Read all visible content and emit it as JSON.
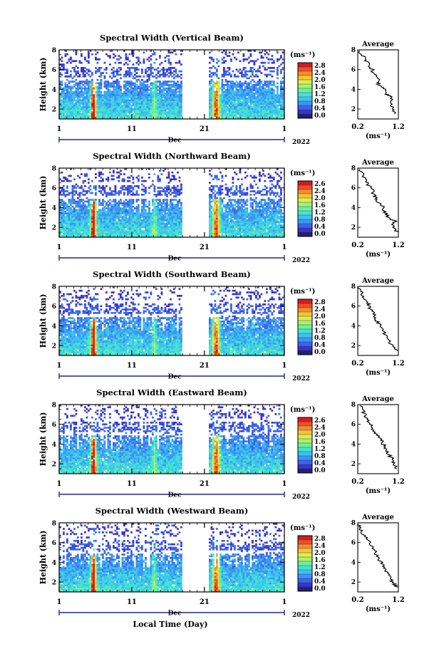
{
  "chart_data": {
    "type": "heatmap",
    "x_axis": {
      "tick_labels": [
        "1",
        "11",
        "21",
        "1"
      ],
      "month_label": "Dec",
      "year_label": "2022",
      "label": "Local Time (Day)"
    },
    "y_axis": {
      "label": "Height (km)",
      "ylim": [
        1,
        8
      ],
      "tick_labels": [
        "2",
        "4",
        "6",
        "8"
      ]
    },
    "colorbar": {
      "unit": "(ms⁻¹)",
      "colors": [
        "#222266",
        "#3a34c8",
        "#3f63e8",
        "#3d95f0",
        "#3cc3ef",
        "#46e3cf",
        "#6cf29a",
        "#a8f26a",
        "#e0ee45",
        "#f8c431",
        "#f58c28",
        "#ee4f22",
        "#d61b1b"
      ],
      "grid_color": "#1d2a8c"
    },
    "average_panel": {
      "title": "Average",
      "xlim": [
        0.2,
        1.2
      ],
      "x_tick_labels": [
        "0.2",
        "1.2"
      ],
      "x_unit": "(ms⁻¹)",
      "ylim": [
        1,
        8
      ],
      "y_tick_labels": [
        "2",
        "4",
        "6",
        "8"
      ]
    },
    "panels": [
      {
        "title": "Spectral Width (Vertical Beam)",
        "colorbar_labels": [
          "2.8",
          "2.4",
          "2.0",
          "1.6",
          "1.2",
          "0.8",
          "0.4",
          "0.0"
        ],
        "avg_profile": [
          [
            1.1,
            1.5
          ],
          [
            1.08,
            2.0
          ],
          [
            1.0,
            2.6
          ],
          [
            1.05,
            3.2
          ],
          [
            0.9,
            3.5
          ],
          [
            0.85,
            4.0
          ],
          [
            0.7,
            4.5
          ],
          [
            0.75,
            5.0
          ],
          [
            0.6,
            5.5
          ],
          [
            0.55,
            6.0
          ],
          [
            0.45,
            6.6
          ],
          [
            0.35,
            7.2
          ],
          [
            0.25,
            7.9
          ]
        ]
      },
      {
        "title": "Spectral Width (Northward Beam)",
        "colorbar_labels": [
          "2.6",
          "2.4",
          "2.0",
          "1.6",
          "1.2",
          "0.8",
          "0.4",
          "0.0"
        ],
        "avg_profile": [
          [
            1.2,
            1.5
          ],
          [
            1.05,
            2.0
          ],
          [
            1.12,
            2.6
          ],
          [
            0.95,
            3.0
          ],
          [
            0.85,
            3.6
          ],
          [
            0.8,
            4.2
          ],
          [
            0.65,
            4.8
          ],
          [
            0.6,
            5.3
          ],
          [
            0.55,
            5.8
          ],
          [
            0.45,
            6.4
          ],
          [
            0.35,
            7.0
          ],
          [
            0.25,
            7.9
          ]
        ]
      },
      {
        "title": "Spectral Width (Southward Beam)",
        "colorbar_labels": [
          "2.8",
          "2.4",
          "2.0",
          "1.6",
          "1.2",
          "0.8",
          "0.4",
          "0.0"
        ],
        "avg_profile": [
          [
            1.18,
            1.5
          ],
          [
            1.0,
            2.1
          ],
          [
            0.95,
            2.8
          ],
          [
            0.85,
            3.3
          ],
          [
            0.75,
            4.0
          ],
          [
            0.65,
            4.6
          ],
          [
            0.6,
            5.2
          ],
          [
            0.5,
            5.8
          ],
          [
            0.45,
            6.3
          ],
          [
            0.35,
            6.9
          ],
          [
            0.28,
            7.4
          ],
          [
            0.2,
            7.9
          ]
        ]
      },
      {
        "title": "Spectral Width (Eastward Beam)",
        "colorbar_labels": [
          "2.6",
          "2.4",
          "2.0",
          "1.6",
          "1.2",
          "0.8",
          "0.4",
          "0.0"
        ],
        "avg_profile": [
          [
            1.15,
            1.5
          ],
          [
            1.1,
            2.0
          ],
          [
            1.05,
            2.5
          ],
          [
            0.95,
            3.0
          ],
          [
            0.88,
            3.6
          ],
          [
            0.8,
            4.2
          ],
          [
            0.7,
            4.8
          ],
          [
            0.6,
            5.4
          ],
          [
            0.5,
            6.0
          ],
          [
            0.42,
            6.6
          ],
          [
            0.35,
            7.2
          ],
          [
            0.25,
            7.9
          ]
        ]
      },
      {
        "title": "Spectral Width (Westward Beam)",
        "colorbar_labels": [
          "2.8",
          "2.4",
          "2.0",
          "1.6",
          "1.2",
          "0.8",
          "0.4",
          "0.0"
        ],
        "avg_profile": [
          [
            1.18,
            1.5
          ],
          [
            1.05,
            2.0
          ],
          [
            0.98,
            2.6
          ],
          [
            0.9,
            3.2
          ],
          [
            0.8,
            3.8
          ],
          [
            0.7,
            4.4
          ],
          [
            0.65,
            5.0
          ],
          [
            0.55,
            5.6
          ],
          [
            0.45,
            6.2
          ],
          [
            0.35,
            6.8
          ],
          [
            0.28,
            7.3
          ],
          [
            0.2,
            7.9
          ]
        ]
      }
    ]
  }
}
